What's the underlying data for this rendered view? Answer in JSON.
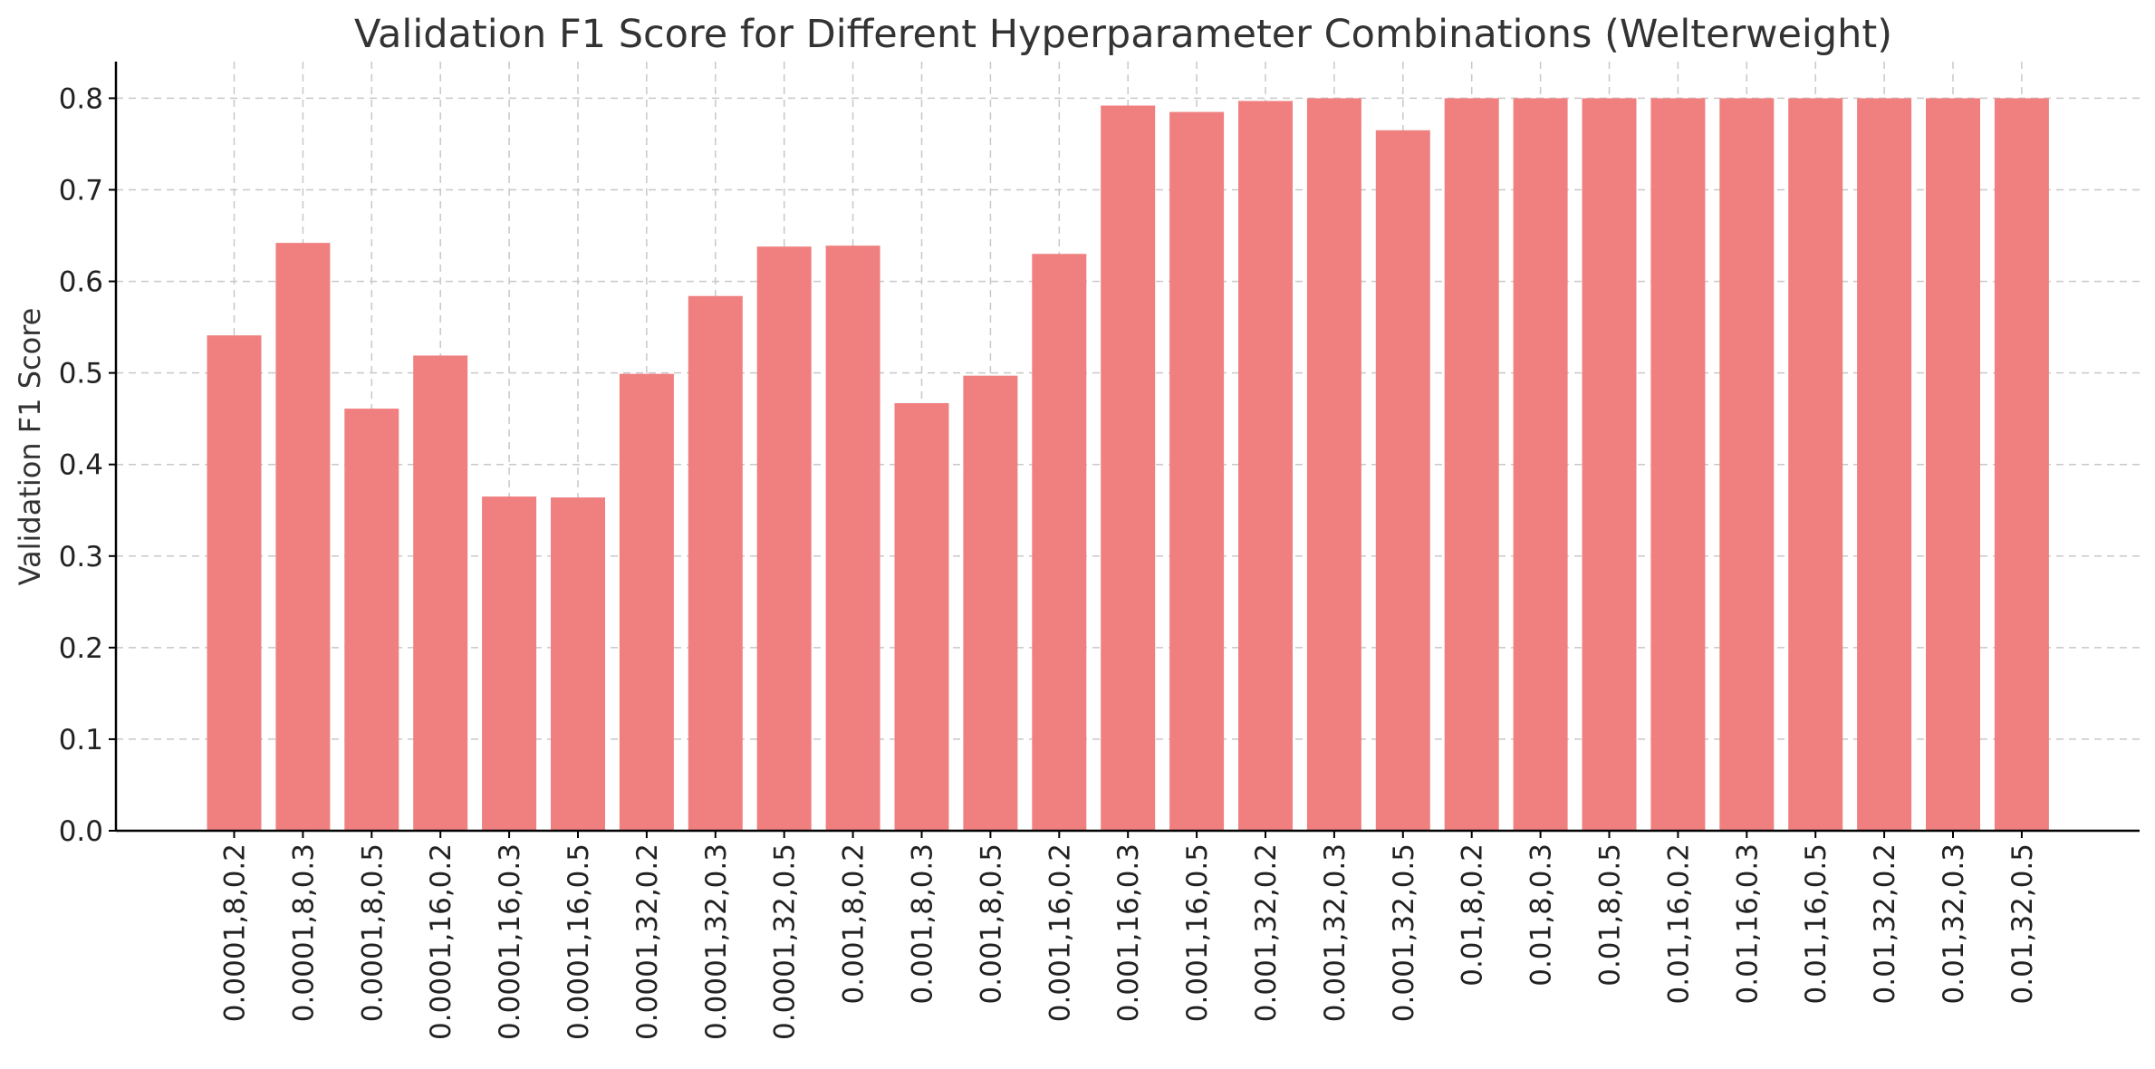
{
  "colors": {
    "bar": "#f08080",
    "grid": "#c8c8c8",
    "axis": "#000000",
    "text": "#333333"
  },
  "chart_data": {
    "type": "bar",
    "title": "Validation F1 Score for Different Hyperparameter Combinations (Welterweight)",
    "xlabel": "",
    "ylabel": "Validation F1 Score",
    "ylim": [
      0,
      0.84
    ],
    "yticks": [
      "0.0",
      "0.1",
      "0.2",
      "0.3",
      "0.4",
      "0.5",
      "0.6",
      "0.7",
      "0.8"
    ],
    "grid": true,
    "categories": [
      "0.0001,8,0.2",
      "0.0001,8,0.3",
      "0.0001,8,0.5",
      "0.0001,16,0.2",
      "0.0001,16,0.3",
      "0.0001,16,0.5",
      "0.0001,32,0.2",
      "0.0001,32,0.3",
      "0.0001,32,0.5",
      "0.001,8,0.2",
      "0.001,8,0.3",
      "0.001,8,0.5",
      "0.001,16,0.2",
      "0.001,16,0.3",
      "0.001,16,0.5",
      "0.001,32,0.2",
      "0.001,32,0.3",
      "0.001,32,0.5",
      "0.01,8,0.2",
      "0.01,8,0.3",
      "0.01,8,0.5",
      "0.01,16,0.2",
      "0.01,16,0.3",
      "0.01,16,0.5",
      "0.01,32,0.2",
      "0.01,32,0.3",
      "0.01,32,0.5"
    ],
    "values": [
      0.541,
      0.642,
      0.461,
      0.519,
      0.365,
      0.364,
      0.499,
      0.584,
      0.638,
      0.639,
      0.467,
      0.497,
      0.63,
      0.792,
      0.785,
      0.797,
      0.8,
      0.765,
      0.8,
      0.8,
      0.8,
      0.8,
      0.8,
      0.8,
      0.8,
      0.8,
      0.8
    ]
  }
}
